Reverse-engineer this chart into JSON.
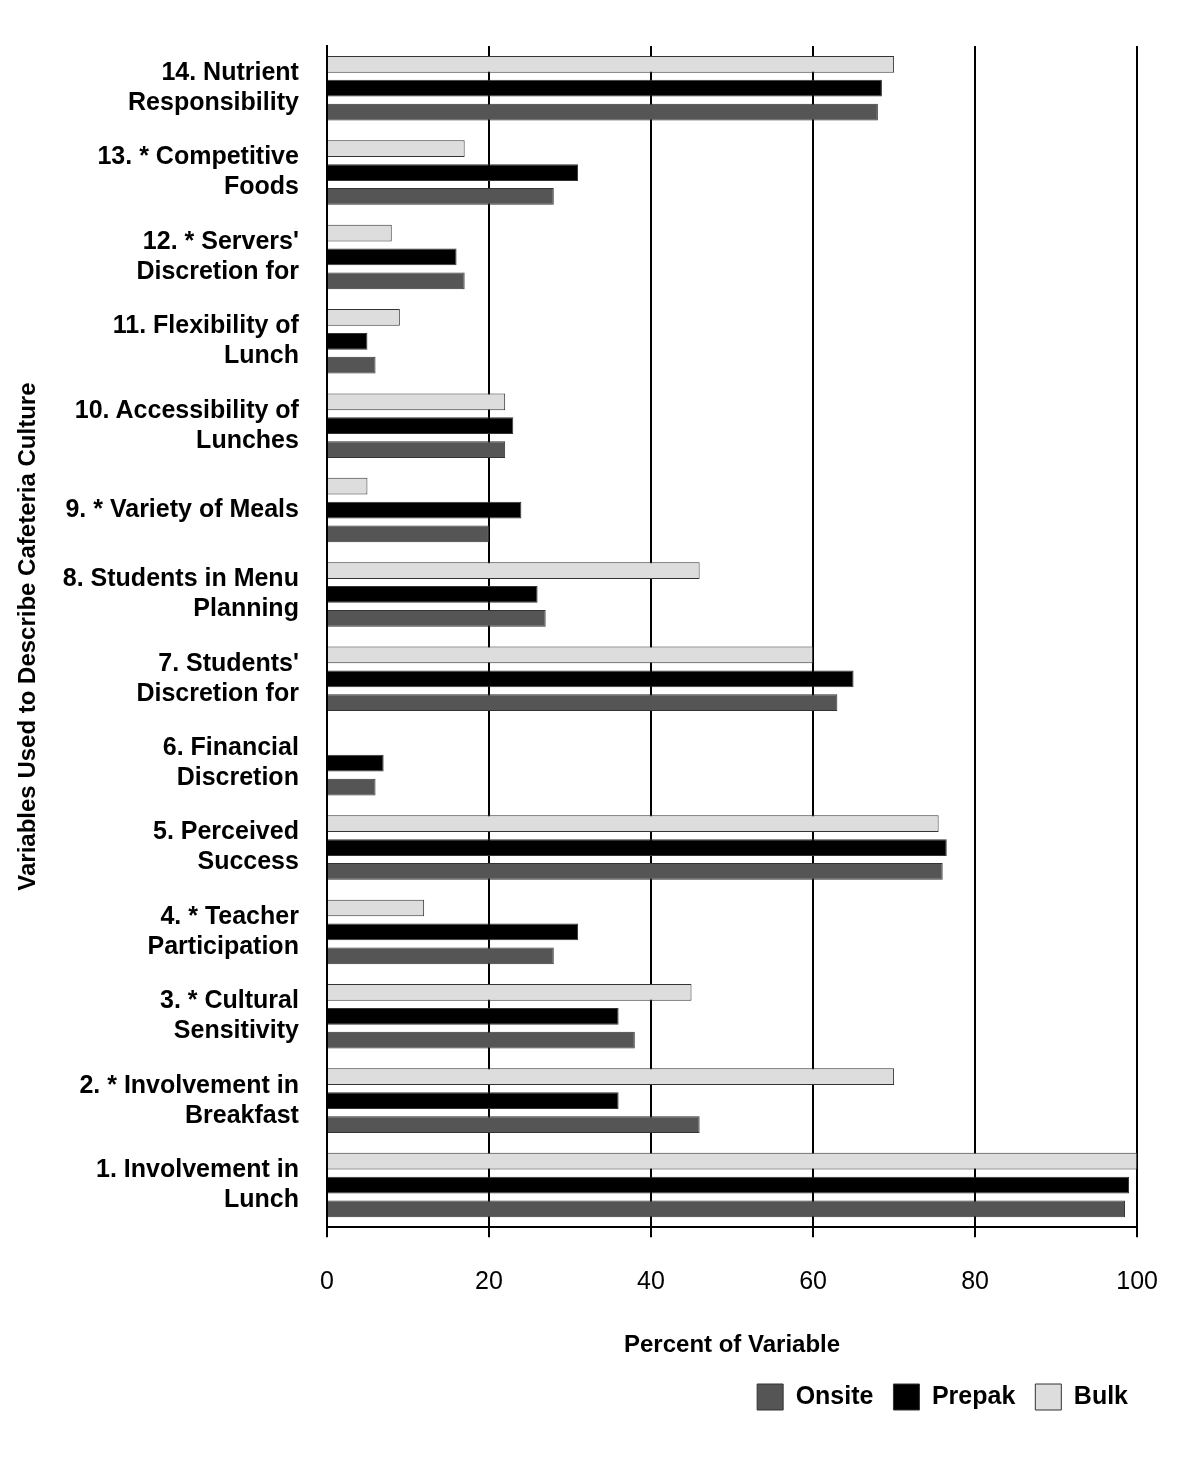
{
  "chart_data": {
    "type": "bar",
    "orientation": "horizontal",
    "categories": [
      "14. Nutrient Responsibility",
      "13. * Competitive Foods",
      "12. * Servers' Discretion for",
      "11. Flexibility of Lunch",
      "10. Accessibility of Lunches",
      "9. * Variety of Meals",
      "8. Students in Menu Planning",
      "7. Students' Discretion for",
      "6. Financial Discretion",
      "5. Perceived Success",
      "4. * Teacher Participation",
      "3. * Cultural Sensitivity",
      "2. * Involvement in Breakfast",
      "1. Involvement in Lunch"
    ],
    "series": [
      {
        "name": "Onsite",
        "color": "#555555",
        "values": [
          68,
          28,
          17,
          6,
          22,
          20,
          27,
          63,
          6,
          76,
          28,
          38,
          46,
          98.5
        ]
      },
      {
        "name": "Prepak",
        "color": "#000000",
        "values": [
          68.5,
          31,
          16,
          5,
          23,
          24,
          26,
          65,
          7,
          76.5,
          31,
          36,
          36,
          99
        ]
      },
      {
        "name": "Bulk",
        "color": "#dddddd",
        "values": [
          70,
          17,
          8,
          9,
          22,
          5,
          46,
          60,
          0,
          75.5,
          12,
          45,
          70,
          100
        ]
      }
    ],
    "xlabel": "Percent of Variable",
    "ylabel": "Variables Used to Describe Cafeteria Culture",
    "xlim": [
      0,
      100
    ],
    "xticks": [
      0,
      20,
      40,
      60,
      80,
      100
    ],
    "grid": "x",
    "legend": "bottom"
  }
}
